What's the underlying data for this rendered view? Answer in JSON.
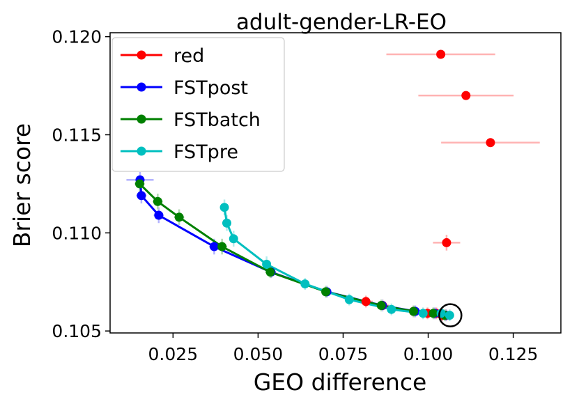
{
  "chart_data": {
    "type": "line",
    "title": "adult-gender-LR-EO",
    "xlabel": "GEO difference",
    "ylabel": "Brier score",
    "xlim": [
      0.0065,
      0.139
    ],
    "ylim": [
      0.1049,
      0.1202
    ],
    "xticks": [
      0.025,
      0.05,
      0.075,
      0.1,
      0.125
    ],
    "xtick_labels": [
      "0.025",
      "0.050",
      "0.075",
      "0.100",
      "0.125"
    ],
    "yticks": [
      0.105,
      0.11,
      0.115,
      0.12
    ],
    "ytick_labels": [
      "0.105",
      "0.110",
      "0.115",
      "0.120"
    ],
    "grid": false,
    "legend_position": "top-left",
    "series": [
      {
        "name": "red",
        "color": "#ff0000",
        "err_color": "#ffb3b3",
        "line": false,
        "x": [
          0.1037,
          0.1111,
          0.1183,
          0.1054,
          0.0817,
          0.0866,
          0.0957,
          0.0998,
          0.1024,
          0.1041,
          0.1053
        ],
        "y": [
          0.1191,
          0.117,
          0.1146,
          0.1095,
          0.1065,
          0.1063,
          0.106,
          0.1059,
          0.1059,
          0.1058,
          0.1058
        ],
        "xerr": [
          0.016,
          0.014,
          0.0145,
          0.004,
          0.002,
          0.002,
          0.002,
          0.002,
          0.002,
          0.002,
          0.002
        ],
        "yerr": [
          0.0,
          0.0,
          0.0,
          0.0004,
          0.0003,
          0.0003,
          0.0003,
          0.0003,
          0.0003,
          0.0003,
          0.0003
        ]
      },
      {
        "name": "FSTpost",
        "color": "#0000ff",
        "err_color": "#b3b3ff",
        "line": true,
        "x": [
          0.0153,
          0.0157,
          0.0208,
          0.0371,
          0.0538,
          0.0702,
          0.0865,
          0.0962,
          0.1019,
          0.1052
        ],
        "y": [
          0.1127,
          0.1119,
          0.1109,
          0.1093,
          0.108,
          0.107,
          0.1063,
          0.106,
          0.1059,
          0.1058
        ],
        "xerr": [
          0.004,
          0.0015,
          0.0015,
          0.0015,
          0.0015,
          0.0015,
          0.0015,
          0.0015,
          0.0015,
          0.0015
        ],
        "yerr": [
          0.0004,
          0.0004,
          0.0004,
          0.0004,
          0.0003,
          0.0003,
          0.0003,
          0.0003,
          0.0003,
          0.0003
        ]
      },
      {
        "name": "FSTbatch",
        "color": "#008000",
        "err_color": "#b3d9b3",
        "line": true,
        "x": [
          0.0152,
          0.0205,
          0.0268,
          0.0394,
          0.0536,
          0.0699,
          0.0862,
          0.0957,
          0.1015,
          0.1049
        ],
        "y": [
          0.1125,
          0.1116,
          0.1108,
          0.1093,
          0.108,
          0.107,
          0.1063,
          0.106,
          0.1059,
          0.1058
        ],
        "xerr": [
          0.0015,
          0.0015,
          0.0015,
          0.0015,
          0.0015,
          0.0015,
          0.0015,
          0.0015,
          0.0015,
          0.0015
        ],
        "yerr": [
          0.0004,
          0.0004,
          0.0004,
          0.0004,
          0.0003,
          0.0003,
          0.0003,
          0.0003,
          0.0003,
          0.0003
        ]
      },
      {
        "name": "FSTpre",
        "color": "#00bfbf",
        "err_color": "#b3ecec",
        "line": true,
        "x": [
          0.0401,
          0.0408,
          0.0428,
          0.0525,
          0.0638,
          0.0768,
          0.0892,
          0.0985,
          0.1038,
          0.1063
        ],
        "y": [
          0.1113,
          0.1105,
          0.1097,
          0.1084,
          0.1074,
          0.1066,
          0.1061,
          0.1059,
          0.1059,
          0.1058
        ],
        "xerr": [
          0.0012,
          0.0012,
          0.0012,
          0.0012,
          0.0012,
          0.0012,
          0.0012,
          0.0012,
          0.0012,
          0.0012
        ],
        "yerr": [
          0.0004,
          0.0004,
          0.0004,
          0.0004,
          0.0003,
          0.0003,
          0.0003,
          0.0003,
          0.0003,
          0.0003
        ]
      }
    ],
    "annotations": [
      {
        "shape": "circle",
        "x": 0.1065,
        "y": 0.1058,
        "stroke": "#000000"
      }
    ]
  }
}
